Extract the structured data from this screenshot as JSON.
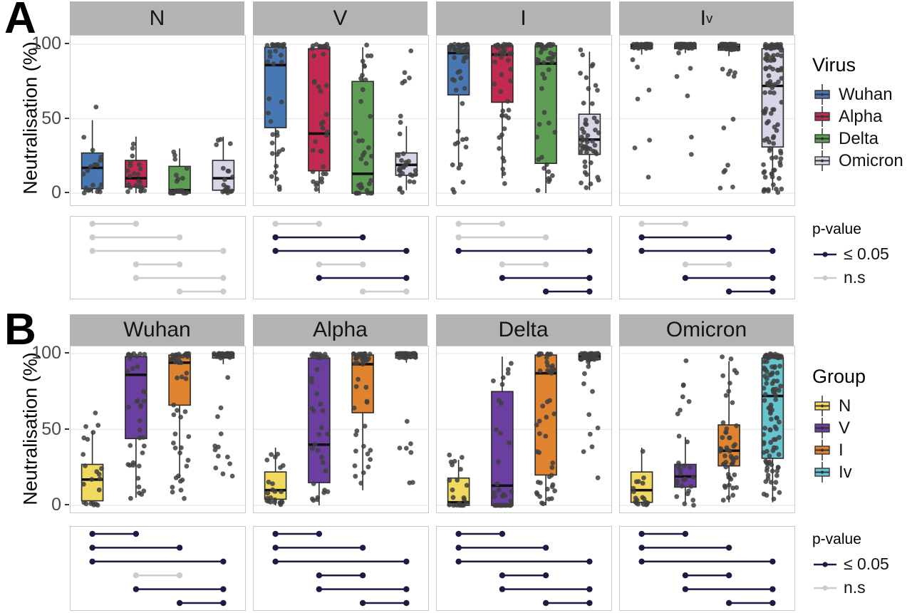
{
  "chart_data": [
    {
      "panel_label": "A",
      "type": "boxplot+jitter",
      "ylabel": "Neutralisation (%)",
      "yticks": [
        0,
        50,
        100
      ],
      "ylim": [
        0,
        100
      ],
      "series_legend_title": "Virus",
      "series": [
        {
          "name": "Wuhan",
          "color": "#4878b4"
        },
        {
          "name": "Alpha",
          "color": "#c22a50"
        },
        {
          "name": "Delta",
          "color": "#5d9e54"
        },
        {
          "name": "Omicron",
          "color": "#d8d5e8"
        }
      ],
      "comparison_pairs": [
        [
          1,
          2
        ],
        [
          1,
          3
        ],
        [
          1,
          4
        ],
        [
          2,
          3
        ],
        [
          2,
          4
        ],
        [
          3,
          4
        ]
      ],
      "pvalue_legend": {
        "title": "p-value",
        "sig_label": "≤ 0.05",
        "ns_label": "n.s",
        "sig_color": "#1b1b45",
        "ns_color": "#cccccc"
      },
      "facets": [
        {
          "title": "N",
          "title_sub": "",
          "boxes": [
            {
              "series": "Wuhan",
              "whiskers": [
                0,
                49
              ],
              "q1": 3,
              "median": 17,
              "q3": 27,
              "points_range": [
                0,
                61
              ],
              "n_points": 22
            },
            {
              "series": "Alpha",
              "whiskers": [
                0,
                38
              ],
              "q1": 4,
              "median": 10,
              "q3": 22,
              "points_range": [
                0,
                38
              ],
              "n_points": 24
            },
            {
              "series": "Delta",
              "whiskers": [
                0,
                30
              ],
              "q1": 0,
              "median": 2,
              "q3": 18,
              "points_range": [
                0,
                41
              ],
              "n_points": 22
            },
            {
              "series": "Omicron",
              "whiskers": [
                0,
                38
              ],
              "q1": 2,
              "median": 10,
              "q3": 22,
              "points_range": [
                0,
                38
              ],
              "n_points": 20
            }
          ],
          "comparisons": [
            "ns",
            "ns",
            "ns",
            "ns",
            "ns",
            "ns"
          ]
        },
        {
          "title": "V",
          "title_sub": "",
          "boxes": [
            {
              "series": "Wuhan",
              "whiskers": [
                5,
                100
              ],
              "q1": 44,
              "median": 86,
              "q3": 98,
              "points_range": [
                2,
                100
              ],
              "n_points": 38
            },
            {
              "series": "Alpha",
              "whiskers": [
                0,
                100
              ],
              "q1": 15,
              "median": 40,
              "q3": 97,
              "points_range": [
                0,
                100
              ],
              "n_points": 38
            },
            {
              "series": "Delta",
              "whiskers": [
                0,
                98
              ],
              "q1": 0,
              "median": 13,
              "q3": 75,
              "points_range": [
                0,
                100
              ],
              "n_points": 36
            },
            {
              "series": "Omicron",
              "whiskers": [
                2,
                45
              ],
              "q1": 12,
              "median": 19,
              "q3": 27,
              "points_range": [
                0,
                98
              ],
              "n_points": 30
            }
          ],
          "comparisons": [
            "ns",
            "sig",
            "sig",
            "ns",
            "sig",
            "ns"
          ]
        },
        {
          "title": "I",
          "title_sub": "",
          "boxes": [
            {
              "series": "Wuhan",
              "whiskers": [
                18,
                100
              ],
              "q1": 66,
              "median": 94,
              "q3": 99,
              "points_range": [
                0,
                100
              ],
              "n_points": 48
            },
            {
              "series": "Alpha",
              "whiskers": [
                10,
                100
              ],
              "q1": 61,
              "median": 93,
              "q3": 99,
              "points_range": [
                0,
                100
              ],
              "n_points": 48
            },
            {
              "series": "Delta",
              "whiskers": [
                0,
                100
              ],
              "q1": 20,
              "median": 87,
              "q3": 99,
              "points_range": [
                0,
                100
              ],
              "n_points": 48
            },
            {
              "series": "Omicron",
              "whiskers": [
                2,
                95
              ],
              "q1": 26,
              "median": 36,
              "q3": 53,
              "points_range": [
                0,
                100
              ],
              "n_points": 50
            }
          ],
          "comparisons": [
            "ns",
            "ns",
            "sig",
            "ns",
            "sig",
            "sig"
          ]
        },
        {
          "title": "I",
          "title_sub": "v",
          "boxes": [
            {
              "series": "Wuhan",
              "whiskers": [
                93,
                100
              ],
              "q1": 97,
              "median": 99,
              "q3": 100,
              "points_range": [
                10,
                100
              ],
              "n_points": 45
            },
            {
              "series": "Alpha",
              "whiskers": [
                94,
                100
              ],
              "q1": 97,
              "median": 99,
              "q3": 100,
              "points_range": [
                5,
                100
              ],
              "n_points": 45
            },
            {
              "series": "Delta",
              "whiskers": [
                92,
                100
              ],
              "q1": 96,
              "median": 98,
              "q3": 100,
              "points_range": [
                2,
                100
              ],
              "n_points": 45
            },
            {
              "series": "Omicron",
              "whiskers": [
                2,
                100
              ],
              "q1": 31,
              "median": 72,
              "q3": 97,
              "points_range": [
                0,
                100
              ],
              "n_points": 110
            }
          ],
          "comparisons": [
            "ns",
            "sig",
            "sig",
            "ns",
            "sig",
            "sig"
          ]
        }
      ]
    },
    {
      "panel_label": "B",
      "type": "boxplot+jitter",
      "ylabel": "Neutralisation (%)",
      "yticks": [
        0,
        50,
        100
      ],
      "ylim": [
        0,
        100
      ],
      "series_legend_title": "Group",
      "series": [
        {
          "name": "N",
          "color": "#f0d95e"
        },
        {
          "name": "V",
          "color": "#6b3fa0"
        },
        {
          "name": "I",
          "color": "#e0832f"
        },
        {
          "name": "Iv",
          "color": "#64c5ce"
        }
      ],
      "comparison_pairs": [
        [
          1,
          2
        ],
        [
          1,
          3
        ],
        [
          1,
          4
        ],
        [
          2,
          3
        ],
        [
          2,
          4
        ],
        [
          3,
          4
        ]
      ],
      "pvalue_legend": {
        "title": "p-value",
        "sig_label": "≤ 0.05",
        "ns_label": "n.s",
        "sig_color": "#1b1b45",
        "ns_color": "#cccccc"
      },
      "facets": [
        {
          "title": "Wuhan",
          "title_sub": "",
          "boxes": [
            {
              "series": "N",
              "whiskers": [
                0,
                49
              ],
              "q1": 3,
              "median": 17,
              "q3": 27,
              "points_range": [
                0,
                61
              ],
              "n_points": 22
            },
            {
              "series": "V",
              "whiskers": [
                5,
                100
              ],
              "q1": 44,
              "median": 86,
              "q3": 98,
              "points_range": [
                2,
                100
              ],
              "n_points": 38
            },
            {
              "series": "I",
              "whiskers": [
                18,
                100
              ],
              "q1": 66,
              "median": 94,
              "q3": 99,
              "points_range": [
                0,
                100
              ],
              "n_points": 48
            },
            {
              "series": "Iv",
              "whiskers": [
                93,
                100
              ],
              "q1": 97,
              "median": 99,
              "q3": 100,
              "points_range": [
                10,
                100
              ],
              "n_points": 45
            }
          ],
          "comparisons": [
            "sig",
            "sig",
            "sig",
            "ns",
            "sig",
            "sig"
          ]
        },
        {
          "title": "Alpha",
          "title_sub": "",
          "boxes": [
            {
              "series": "N",
              "whiskers": [
                0,
                38
              ],
              "q1": 4,
              "median": 10,
              "q3": 22,
              "points_range": [
                0,
                38
              ],
              "n_points": 24
            },
            {
              "series": "V",
              "whiskers": [
                0,
                100
              ],
              "q1": 15,
              "median": 40,
              "q3": 97,
              "points_range": [
                0,
                100
              ],
              "n_points": 38
            },
            {
              "series": "I",
              "whiskers": [
                10,
                100
              ],
              "q1": 61,
              "median": 93,
              "q3": 99,
              "points_range": [
                0,
                100
              ],
              "n_points": 48
            },
            {
              "series": "Iv",
              "whiskers": [
                94,
                100
              ],
              "q1": 97,
              "median": 99,
              "q3": 100,
              "points_range": [
                5,
                100
              ],
              "n_points": 45
            }
          ],
          "comparisons": [
            "sig",
            "sig",
            "sig",
            "sig",
            "sig",
            "sig"
          ]
        },
        {
          "title": "Delta",
          "title_sub": "",
          "boxes": [
            {
              "series": "N",
              "whiskers": [
                0,
                30
              ],
              "q1": 0,
              "median": 2,
              "q3": 18,
              "points_range": [
                0,
                41
              ],
              "n_points": 22
            },
            {
              "series": "V",
              "whiskers": [
                0,
                98
              ],
              "q1": 0,
              "median": 13,
              "q3": 75,
              "points_range": [
                0,
                100
              ],
              "n_points": 36
            },
            {
              "series": "I",
              "whiskers": [
                0,
                100
              ],
              "q1": 20,
              "median": 87,
              "q3": 99,
              "points_range": [
                0,
                100
              ],
              "n_points": 48
            },
            {
              "series": "Iv",
              "whiskers": [
                92,
                100
              ],
              "q1": 96,
              "median": 98,
              "q3": 100,
              "points_range": [
                2,
                100
              ],
              "n_points": 45
            }
          ],
          "comparisons": [
            "sig",
            "sig",
            "sig",
            "sig",
            "sig",
            "sig"
          ]
        },
        {
          "title": "Omicron",
          "title_sub": "",
          "boxes": [
            {
              "series": "N",
              "whiskers": [
                0,
                38
              ],
              "q1": 2,
              "median": 10,
              "q3": 22,
              "points_range": [
                0,
                38
              ],
              "n_points": 20
            },
            {
              "series": "V",
              "whiskers": [
                2,
                45
              ],
              "q1": 12,
              "median": 19,
              "q3": 27,
              "points_range": [
                0,
                98
              ],
              "n_points": 30
            },
            {
              "series": "I",
              "whiskers": [
                2,
                95
              ],
              "q1": 26,
              "median": 36,
              "q3": 53,
              "points_range": [
                0,
                100
              ],
              "n_points": 50
            },
            {
              "series": "Iv",
              "whiskers": [
                2,
                100
              ],
              "q1": 31,
              "median": 72,
              "q3": 97,
              "points_range": [
                0,
                100
              ],
              "n_points": 110
            }
          ],
          "comparisons": [
            "sig",
            "sig",
            "sig",
            "sig",
            "sig",
            "sig"
          ]
        }
      ]
    }
  ],
  "style": {
    "facet_header_bg": "#b3b3b3",
    "panel_border": "#c9c9c9",
    "gridline_color": "#e7e7e7",
    "point_color": "#3f3f3f",
    "box_stroke": "#2b2b2b",
    "median_color": "#101010",
    "tick_text_color": "#4a4a4a"
  }
}
